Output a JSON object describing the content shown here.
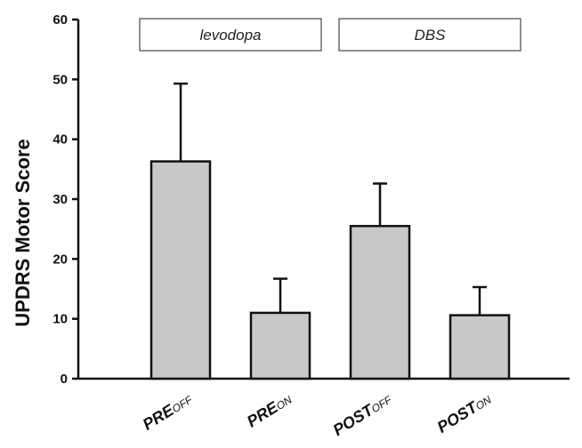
{
  "chart_data": {
    "type": "bar",
    "ylabel": "UPDRS Motor Score",
    "ylim": [
      0,
      60
    ],
    "yticks": [
      0,
      10,
      20,
      30,
      40,
      50,
      60
    ],
    "grid": false,
    "categories": [
      {
        "main": "PRE",
        "sub": "OFF"
      },
      {
        "main": "PRE",
        "sub": "ON"
      },
      {
        "main": "POST",
        "sub": "OFF"
      },
      {
        "main": "POST",
        "sub": "ON"
      }
    ],
    "values": [
      36.3,
      11.0,
      25.5,
      10.6
    ],
    "error_upper": [
      49.3,
      16.7,
      32.6,
      15.3
    ],
    "groups": [
      {
        "label": "levodopa",
        "categories": [
          0,
          1
        ]
      },
      {
        "label": "DBS",
        "categories": [
          2,
          3
        ]
      }
    ],
    "bar_color": "#c8c8c8",
    "edge_color": "#111111"
  }
}
